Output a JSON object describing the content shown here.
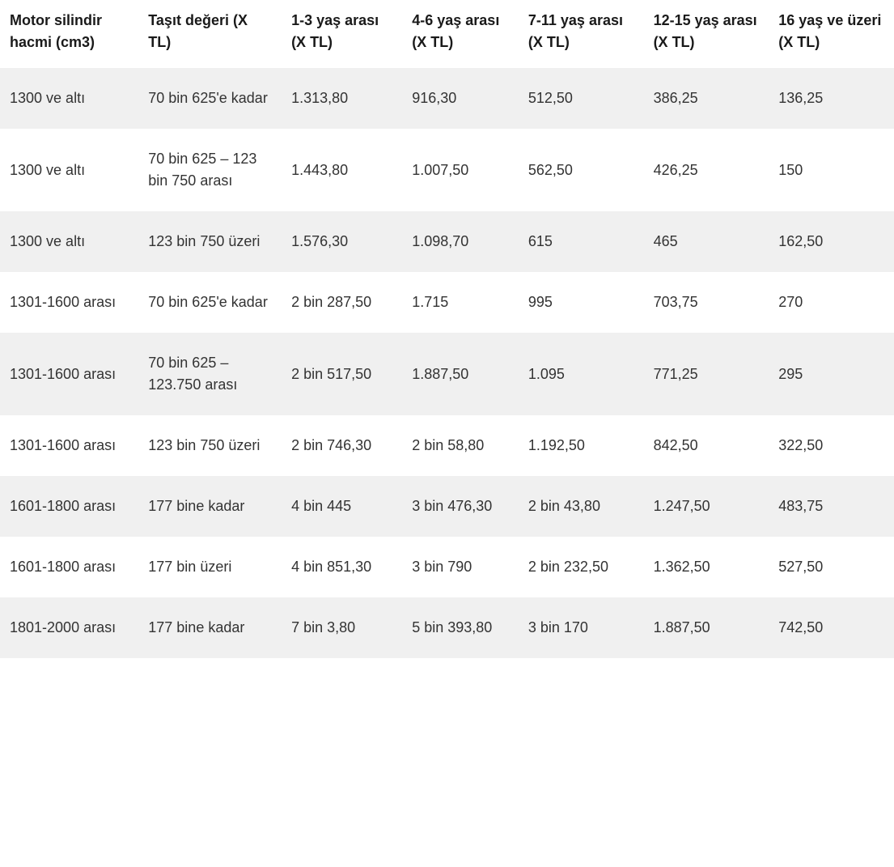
{
  "table": {
    "background_color": "#ffffff",
    "stripe_color": "#f0f0f0",
    "text_color": "#333333",
    "header_text_color": "#1a1a1a",
    "font_size": 18,
    "header_font_weight": 700,
    "columns": [
      {
        "label": "Motor silindir hacmi (cm3)",
        "width_pct": 15.5
      },
      {
        "label": "Taşıt değeri (X TL)",
        "width_pct": 16
      },
      {
        "label": "1-3 yaş arası (X TL)",
        "width_pct": 13.5
      },
      {
        "label": "4-6 yaş arası (X TL)",
        "width_pct": 13
      },
      {
        "label": "7-11 yaş arası (X TL)",
        "width_pct": 14
      },
      {
        "label": "12-15 yaş arası (X TL)",
        "width_pct": 14
      },
      {
        "label": "16 yaş ve üzeri (X TL)",
        "width_pct": 14
      }
    ],
    "rows": [
      [
        "1300 ve altı",
        "70 bin 625'e kadar",
        "1.313,80",
        "916,30",
        "512,50",
        "386,25",
        "136,25"
      ],
      [
        "1300 ve altı",
        "70 bin 625 – 123 bin 750 arası",
        "1.443,80",
        "1.007,50",
        "562,50",
        "426,25",
        "150"
      ],
      [
        "1300 ve altı",
        "123 bin 750 üzeri",
        "1.576,30",
        "1.098,70",
        "615",
        "465",
        "162,50"
      ],
      [
        "1301-1600 arası",
        "70 bin 625'e kadar",
        "2 bin 287,50",
        "1.715",
        "995",
        "703,75",
        "270"
      ],
      [
        "1301-1600 arası",
        "70 bin 625 – 123.750 arası",
        "2 bin 517,50",
        "1.887,50",
        "1.095",
        "771,25",
        "295"
      ],
      [
        "1301-1600 arası",
        "123 bin 750 üzeri",
        "2 bin 746,30",
        "2 bin 58,80",
        "1.192,50",
        "842,50",
        "322,50"
      ],
      [
        "1601-1800 arası",
        "177 bine kadar",
        "4 bin 445",
        "3 bin 476,30",
        "2 bin 43,80",
        "1.247,50",
        "483,75"
      ],
      [
        "1601-1800 arası",
        "177 bin üzeri",
        "4 bin 851,30",
        "3 bin 790",
        "2 bin 232,50",
        "1.362,50",
        "527,50"
      ],
      [
        "1801-2000 arası",
        "177 bine kadar",
        "7 bin 3,80",
        "5 bin 393,80",
        "3 bin 170",
        "1.887,50",
        "742,50"
      ]
    ]
  }
}
